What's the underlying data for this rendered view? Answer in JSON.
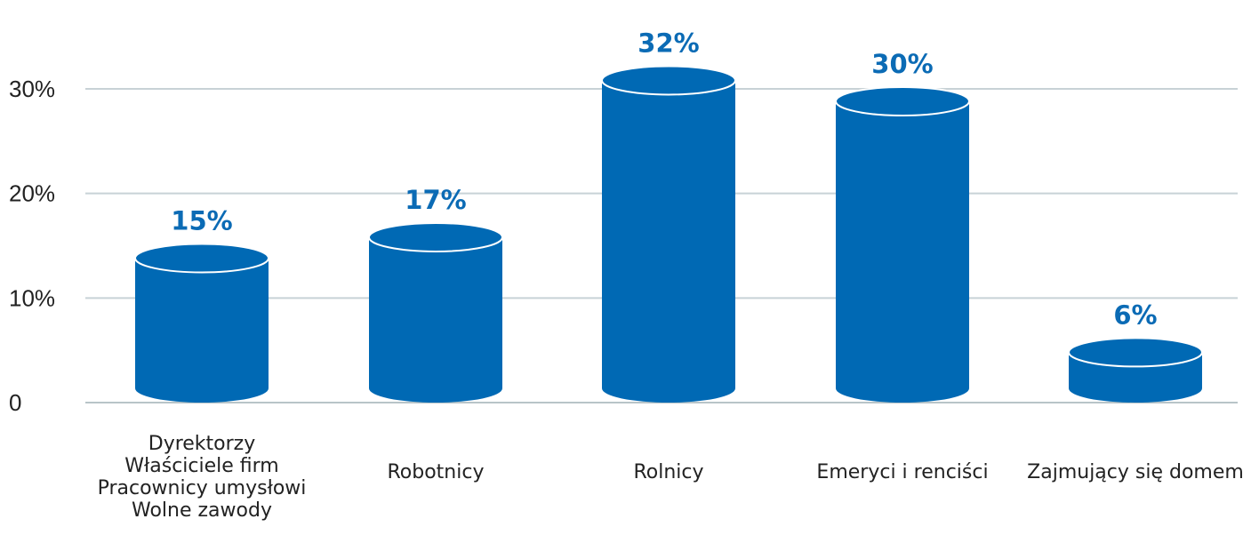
{
  "chart_data": {
    "type": "bar",
    "categories": [
      [
        "Dyrektorzy",
        "Właściciele firm",
        "Pracownicy umysłowi",
        "Wolne zawody"
      ],
      [
        "Robotnicy"
      ],
      [
        "Rolnicy"
      ],
      [
        "Emeryci i renciści"
      ],
      [
        "Zajmujący się domem"
      ]
    ],
    "values": [
      15,
      17,
      32,
      30,
      6
    ],
    "value_labels": [
      "15%",
      "17%",
      "32%",
      "30%",
      "6%"
    ],
    "yticks": [
      {
        "value": 0,
        "label": "0"
      },
      {
        "value": 10,
        "label": "10%"
      },
      {
        "value": 20,
        "label": "20%"
      },
      {
        "value": 30,
        "label": "30%"
      }
    ],
    "ylim": [
      0,
      30
    ],
    "grid": true,
    "legend": "none",
    "bar_style": "cylinder",
    "colors": {
      "bar": "#0069b4",
      "bar_outline": "#ffffff",
      "value_label": "#0b6bb5",
      "grid": "#c8d2d6",
      "text": "#222222"
    }
  }
}
